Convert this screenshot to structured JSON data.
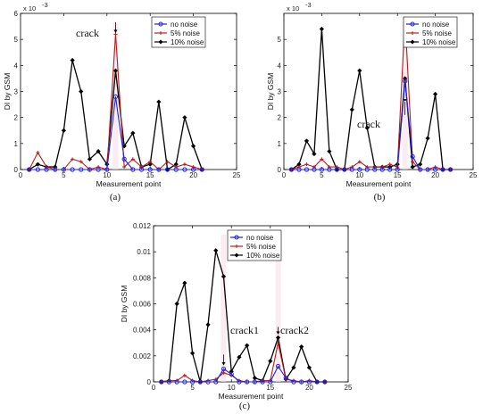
{
  "chart_data": [
    {
      "type": "line",
      "caption": "(a)",
      "xlabel": "Measurement point",
      "ylabel": "DI by GSM",
      "y_exponent": "x 10",
      "y_exponent_power": "-3",
      "xlim": [
        0,
        25
      ],
      "ylim": [
        0,
        0.006
      ],
      "xticks": [
        "0",
        "5",
        "10",
        "15",
        "20",
        "25"
      ],
      "yticks": [
        "0",
        "1",
        "2",
        "3",
        "4",
        "5",
        "6"
      ],
      "ytick_values": [
        0,
        0.001,
        0.002,
        0.003,
        0.004,
        0.005,
        0.006
      ],
      "annotations": [
        {
          "text": "crack",
          "x": 11
        }
      ],
      "legend_position": "top-right",
      "x": [
        1,
        2,
        3,
        4,
        5,
        6,
        7,
        8,
        9,
        10,
        11,
        12,
        13,
        14,
        15,
        16,
        17,
        18,
        19,
        20,
        21
      ],
      "series": [
        {
          "name": "no noise",
          "color": "#1f1fe0",
          "marker": "circle",
          "values": [
            0,
            0,
            0,
            0,
            0,
            0,
            0,
            0,
            0,
            0,
            0.0028,
            0.0004,
            0,
            0,
            0,
            0,
            0,
            0,
            0,
            0,
            0
          ]
        },
        {
          "name": "5% noise",
          "color": "#b02020",
          "marker": "star",
          "values": [
            0,
            0.00065,
            0.0001,
            0,
            0,
            0.0004,
            0.0003,
            0,
            0.0001,
            0,
            0.0052,
            0.0001,
            0.0004,
            0.0001,
            0.0003,
            0,
            0.0003,
            0.0001,
            0.0002,
            0.0001,
            0
          ]
        },
        {
          "name": "10% noise",
          "color": "#000000",
          "marker": "diamond",
          "values": [
            0,
            0.0002,
            0.0001,
            0.0001,
            0.0015,
            0.0042,
            0.003,
            0.0004,
            0.0007,
            0.0002,
            0.0038,
            0.0009,
            0.0014,
            0.0001,
            0.0002,
            0.0026,
            0,
            0.0002,
            0.002,
            0.0009,
            0
          ]
        }
      ]
    },
    {
      "type": "line",
      "caption": "(b)",
      "xlabel": "Measurement point",
      "ylabel": "DI by GSM",
      "y_exponent": "x 10",
      "y_exponent_power": "-3",
      "xlim": [
        0,
        25
      ],
      "ylim": [
        0,
        0.006
      ],
      "xticks": [
        "0",
        "5",
        "10",
        "15",
        "20",
        "25"
      ],
      "yticks": [
        "0",
        "1",
        "2",
        "3",
        "4",
        "5"
      ],
      "ytick_values": [
        0,
        0.001,
        0.002,
        0.003,
        0.004,
        0.005
      ],
      "annotations": [
        {
          "text": "crack",
          "x": 16
        }
      ],
      "legend_position": "top-right",
      "x": [
        1,
        2,
        3,
        4,
        5,
        6,
        7,
        8,
        9,
        10,
        11,
        12,
        13,
        14,
        15,
        16,
        17,
        18,
        19,
        20,
        21,
        22
      ],
      "series": [
        {
          "name": "no noise",
          "color": "#1f1fe0",
          "marker": "circle",
          "values": [
            0,
            0,
            0,
            0,
            0,
            0,
            0,
            0,
            0,
            0,
            0,
            0,
            0,
            0,
            0,
            0.0034,
            0.0005,
            0,
            0,
            0,
            0,
            0
          ]
        },
        {
          "name": "5% noise",
          "color": "#b02020",
          "marker": "star",
          "values": [
            0,
            0.0001,
            0.0002,
            0.0001,
            0.0004,
            0.0001,
            0.0001,
            0,
            0.0001,
            0.0003,
            0.0001,
            0.0001,
            0.0001,
            0.0002,
            0.0001,
            0.0058,
            0.0003,
            0,
            0,
            0.0001,
            0,
            0
          ]
        },
        {
          "name": "10% noise",
          "color": "#000000",
          "marker": "diamond",
          "values": [
            0,
            0.0002,
            0.0011,
            0.0006,
            0.0054,
            0.0007,
            0,
            0,
            0.0023,
            0.0038,
            0.0016,
            0.0001,
            0.0001,
            0.0001,
            0.0002,
            0.0035,
            0.0001,
            0.0002,
            0.0012,
            0.0029,
            0,
            0
          ]
        }
      ]
    },
    {
      "type": "line",
      "caption": "(c)",
      "xlabel": "Measurement point",
      "ylabel": "DI by GSM",
      "xlim": [
        0,
        25
      ],
      "ylim": [
        0,
        0.012
      ],
      "xticks": [
        "0",
        "5",
        "10",
        "15",
        "20",
        "25"
      ],
      "yticks": [
        "0",
        "0.002",
        "0.004",
        "0.006",
        "0.008",
        "0.01",
        "0.012"
      ],
      "ytick_values": [
        0,
        0.002,
        0.004,
        0.006,
        0.008,
        0.01,
        0.012
      ],
      "annotations": [
        {
          "text": "crack1",
          "x": 9
        },
        {
          "text": "crack2",
          "x": 16
        }
      ],
      "legend_position": "top-right",
      "x": [
        1,
        2,
        3,
        4,
        5,
        6,
        7,
        8,
        9,
        10,
        11,
        12,
        13,
        14,
        15,
        16,
        17,
        18,
        19,
        20,
        21,
        22
      ],
      "series": [
        {
          "name": "no noise",
          "color": "#1f1fe0",
          "marker": "circle",
          "values": [
            0,
            0,
            0,
            0,
            0,
            0,
            0,
            0,
            0.001,
            0.0006,
            0,
            0,
            0,
            0,
            0,
            0.0012,
            0.0003,
            0,
            0,
            0,
            0,
            0
          ]
        },
        {
          "name": "5% noise",
          "color": "#b02020",
          "marker": "star",
          "values": [
            0,
            0.0001,
            0.0001,
            0.0005,
            0.0001,
            0,
            0.0001,
            0.0002,
            0.0007,
            0.0005,
            0.0001,
            0,
            0,
            0.0001,
            0.0001,
            0.003,
            0.0002,
            0.0001,
            0,
            0.0001,
            0,
            0
          ]
        },
        {
          "name": "10% noise",
          "color": "#000000",
          "marker": "diamond",
          "values": [
            0,
            0.0001,
            0.006,
            0.0076,
            0.0022,
            0,
            0.0044,
            0.0101,
            0.0081,
            0.0008,
            0.0019,
            0.0028,
            0.0003,
            0.0001,
            0.0016,
            0.0034,
            0.0002,
            0.0011,
            0.0027,
            0.0011,
            0,
            0
          ]
        }
      ]
    }
  ]
}
